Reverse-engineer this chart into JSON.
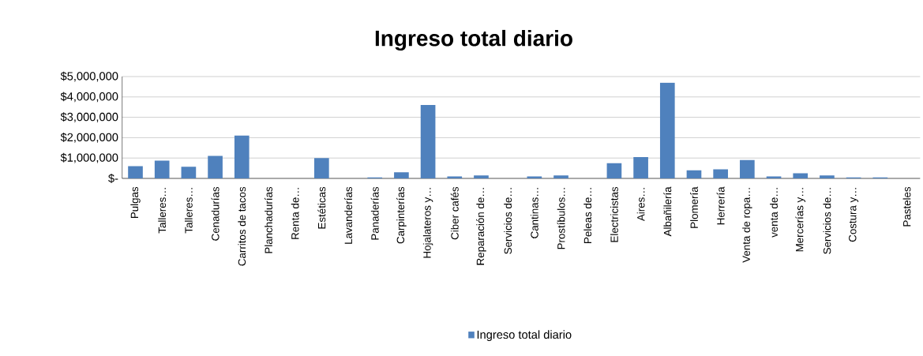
{
  "chart_data": {
    "type": "bar",
    "title": "Ingreso total diario",
    "categories": [
      "Pulgas",
      "Talleres…",
      "Talleres…",
      "Cenadurías",
      "Carritos de tacos",
      "Planchadurías",
      "Renta de…",
      "Estéticas",
      "Lavanderías",
      "Panaderías",
      "Carpinterías",
      "Hojalateros y…",
      "Ciber cafés",
      "Reparación de…",
      "Servicios de…",
      "Cantinas…",
      "Prostíbulos…",
      "Peleas de…",
      "Electricistas",
      "Aires…",
      "Albañilería",
      "Plomería",
      "Herrería",
      "Venta de ropa…",
      "venta de…",
      "Mercerías y…",
      "Servicios de…",
      "Costura y…",
      null,
      "Pasteles"
    ],
    "series": [
      {
        "name": "Ingreso total diario",
        "color": "#4f81bd",
        "values": [
          600000,
          870000,
          570000,
          1100000,
          2100000,
          0,
          0,
          1000000,
          0,
          50000,
          300000,
          3600000,
          100000,
          150000,
          0,
          100000,
          150000,
          0,
          750000,
          1050000,
          4700000,
          400000,
          450000,
          900000,
          100000,
          250000,
          150000,
          50000,
          50000,
          0
        ]
      }
    ],
    "ylim": [
      0,
      5000000
    ],
    "yticks": [
      {
        "value": 0,
        "label": "$-"
      },
      {
        "value": 1000000,
        "label": "$1,000,000"
      },
      {
        "value": 2000000,
        "label": "$2,000,000"
      },
      {
        "value": 3000000,
        "label": "$3,000,000"
      },
      {
        "value": 4000000,
        "label": "$4,000,000"
      },
      {
        "value": 5000000,
        "label": "$5,000,000"
      }
    ],
    "grid": "y",
    "legend": "bottom"
  }
}
